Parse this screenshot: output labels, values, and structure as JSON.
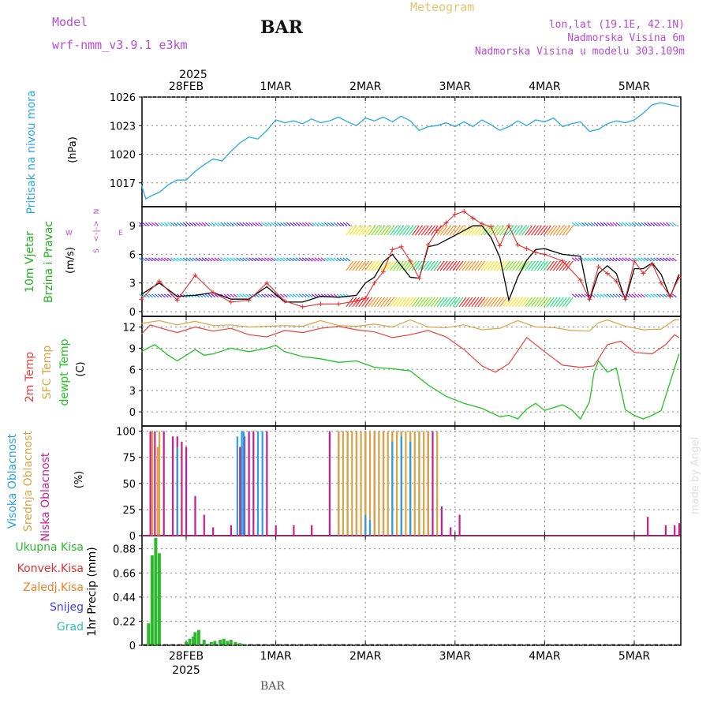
{
  "header": {
    "title": "BAR",
    "footer_station": "BAR",
    "meteogram_label": "Meteogram",
    "model_label": "Model",
    "model_name": "wrf-nmm_v3.9.1 e3km",
    "lonlat": "lon,lat (19.1E, 42.1N)",
    "elevation": "Nadmorska Visina 6m",
    "model_elevation": "Nadmorska Visina u modelu 303.109m",
    "watermark": "made by Angel",
    "year_top": "2025",
    "year_bottom": "2025",
    "compass_n": "N",
    "compass_w": "W",
    "compass_e": "E",
    "compass_s": "S",
    "compass_arrow": "<-|->"
  },
  "colors": {
    "pressure": "#29a8e0",
    "wind_black": "#000000",
    "wind_red": "#e0312f",
    "temp2m": "#e8413c",
    "tempsfc": "#d9a441",
    "dewpt": "#1fc41f",
    "cloud_high": "#2aa0e0",
    "cloud_mid": "#d9a441",
    "cloud_low": "#c81e8c",
    "precip_total": "#2db82d",
    "precip_conv": "#e0312f",
    "precip_frozen": "#f08020",
    "precip_snow": "#3c3cf0",
    "precip_graupel": "#30c0c0",
    "label_purple": "#b94bd6",
    "grid": "#888888"
  },
  "chart_data": [
    {
      "id": "pressure",
      "type": "line",
      "ylabel": "(hPa)",
      "side_labels": [
        "Pritisak na nivou mora"
      ],
      "x_ticks": [
        "28FEB",
        "1MAR",
        "2MAR",
        "3MAR",
        "4MAR",
        "5MAR"
      ],
      "x_range_days": [
        -0.5,
        5.5
      ],
      "ylim": [
        1014.5,
        1026
      ],
      "yticks": [
        1017,
        1020,
        1023,
        1026
      ],
      "series": [
        {
          "name": "Pritisak na nivou mora",
          "x": [
            -0.5,
            -0.45,
            -0.4,
            -0.3,
            -0.2,
            -0.1,
            0.0,
            0.1,
            0.2,
            0.3,
            0.4,
            0.5,
            0.6,
            0.7,
            0.8,
            0.9,
            1.0,
            1.1,
            1.2,
            1.3,
            1.4,
            1.5,
            1.6,
            1.7,
            1.8,
            1.9,
            2.0,
            2.1,
            2.2,
            2.3,
            2.4,
            2.5,
            2.6,
            2.7,
            2.8,
            2.9,
            3.0,
            3.1,
            3.2,
            3.3,
            3.4,
            3.5,
            3.6,
            3.7,
            3.8,
            3.9,
            4.0,
            4.1,
            4.2,
            4.3,
            4.4,
            4.5,
            4.6,
            4.7,
            4.8,
            4.9,
            5.0,
            5.1,
            5.2,
            5.3,
            5.4,
            5.5
          ],
          "values": [
            1016.8,
            1015.3,
            1015.6,
            1016.0,
            1016.8,
            1017.3,
            1017.3,
            1018.2,
            1018.9,
            1019.5,
            1019.3,
            1020.3,
            1021.2,
            1021.8,
            1021.6,
            1022.5,
            1023.6,
            1023.3,
            1023.5,
            1023.2,
            1023.7,
            1023.3,
            1023.5,
            1023.9,
            1023.4,
            1023.0,
            1023.8,
            1023.5,
            1023.9,
            1023.4,
            1024.0,
            1023.5,
            1022.5,
            1022.9,
            1023.0,
            1023.3,
            1022.9,
            1023.4,
            1022.9,
            1023.6,
            1023.1,
            1022.5,
            1022.9,
            1023.5,
            1023.0,
            1023.6,
            1023.4,
            1023.8,
            1022.9,
            1023.2,
            1023.4,
            1022.4,
            1022.6,
            1023.2,
            1023.5,
            1023.3,
            1023.6,
            1024.3,
            1025.2,
            1025.4,
            1025.2,
            1025.0
          ]
        }
      ]
    },
    {
      "id": "wind",
      "type": "line",
      "ylabel": "(m/s)",
      "side_labels": [
        "10m Vjetar",
        "Brzina i Pravac"
      ],
      "ylim": [
        -0.5,
        11
      ],
      "yticks": [
        0,
        3,
        6,
        9
      ],
      "series": [
        {
          "name": "10m wind speed",
          "x": [
            -0.5,
            -0.3,
            -0.1,
            0.1,
            0.3,
            0.5,
            0.7,
            0.9,
            1.1,
            1.3,
            1.5,
            1.7,
            1.9,
            2.0,
            2.1,
            2.2,
            2.3,
            2.4,
            2.5,
            2.6,
            2.7,
            2.8,
            2.9,
            3.0,
            3.1,
            3.2,
            3.3,
            3.4,
            3.5,
            3.6,
            3.7,
            3.8,
            3.9,
            4.0,
            4.2,
            4.4,
            4.5,
            4.6,
            4.7,
            4.8,
            4.9,
            5.0,
            5.1,
            5.2,
            5.3,
            5.4,
            5.5
          ],
          "values": [
            1.8,
            3.0,
            1.6,
            1.7,
            2.0,
            1.3,
            1.3,
            2.6,
            1.0,
            1.0,
            1.6,
            1.5,
            1.7,
            3.0,
            3.6,
            5.2,
            6.0,
            4.8,
            3.6,
            3.5,
            6.8,
            7.0,
            7.5,
            8.0,
            8.5,
            9.0,
            9.0,
            7.8,
            5.7,
            1.2,
            3.6,
            5.4,
            6.5,
            6.6,
            6.0,
            5.8,
            1.2,
            4.0,
            4.8,
            4.0,
            1.2,
            4.5,
            4.5,
            5.1,
            3.9,
            1.5,
            3.9
          ]
        },
        {
          "name": "10m wind gust",
          "x": [
            -0.5,
            -0.3,
            -0.1,
            0.1,
            0.3,
            0.5,
            0.7,
            0.9,
            1.1,
            1.3,
            1.5,
            1.7,
            1.9,
            2.0,
            2.1,
            2.2,
            2.3,
            2.4,
            2.5,
            2.6,
            2.7,
            2.8,
            2.9,
            3.0,
            3.1,
            3.2,
            3.3,
            3.4,
            3.5,
            3.6,
            3.7,
            3.8,
            3.9,
            4.0,
            4.2,
            4.4,
            4.5,
            4.6,
            4.7,
            4.8,
            4.9,
            5.0,
            5.1,
            5.2,
            5.3,
            5.4,
            5.5
          ],
          "values": [
            1.3,
            3.2,
            1.2,
            3.8,
            2.0,
            1.0,
            1.2,
            3.0,
            1.1,
            0.5,
            0.8,
            0.8,
            1.1,
            1.4,
            3.0,
            4.2,
            6.5,
            6.8,
            5.3,
            3.5,
            7.0,
            8.5,
            9.3,
            10.2,
            10.5,
            9.8,
            9.2,
            8.9,
            6.9,
            9.0,
            7.0,
            6.6,
            6.2,
            6.0,
            5.3,
            3.3,
            1.3,
            4.7,
            4.0,
            3.2,
            1.3,
            5.3,
            4.0,
            5.0,
            3.0,
            1.6,
            3.6
          ]
        }
      ],
      "wind_direction_rows": [
        1.5,
        5.3,
        9.0
      ]
    },
    {
      "id": "temperature",
      "type": "line",
      "ylabel": "(C)",
      "side_labels": [
        "2m Temp",
        "SFC Temp",
        "dewpt Temp"
      ],
      "ylim": [
        -2,
        13.5
      ],
      "yticks": [
        0,
        3,
        6,
        9,
        12
      ],
      "series": [
        {
          "name": "2m Temp",
          "x": [
            -0.5,
            -0.4,
            -0.3,
            -0.1,
            0.1,
            0.3,
            0.5,
            0.7,
            0.9,
            1.1,
            1.3,
            1.5,
            1.7,
            1.9,
            2.1,
            2.3,
            2.5,
            2.7,
            2.9,
            3.1,
            3.3,
            3.45,
            3.6,
            3.8,
            4.0,
            4.2,
            4.4,
            4.55,
            4.7,
            4.85,
            5.0,
            5.2,
            5.35,
            5.45,
            5.5
          ],
          "values": [
            11.0,
            12.3,
            11.9,
            11.2,
            12.0,
            11.4,
            11.8,
            10.9,
            10.6,
            11.5,
            11.2,
            11.8,
            12.1,
            11.6,
            11.3,
            10.5,
            10.9,
            11.5,
            10.6,
            8.8,
            6.5,
            5.6,
            6.8,
            10.5,
            8.5,
            6.6,
            6.3,
            6.5,
            9.5,
            10.0,
            8.4,
            8.2,
            9.5,
            10.9,
            10.5
          ]
        },
        {
          "name": "SFC Temp",
          "x": [
            -0.5,
            -0.3,
            -0.1,
            0.1,
            0.3,
            0.5,
            0.7,
            0.9,
            1.1,
            1.3,
            1.5,
            1.7,
            1.9,
            2.1,
            2.3,
            2.5,
            2.7,
            2.9,
            3.1,
            3.3,
            3.5,
            3.7,
            3.9,
            4.1,
            4.3,
            4.5,
            4.6,
            4.7,
            4.9,
            5.1,
            5.3,
            5.45,
            5.5
          ],
          "values": [
            12.5,
            12.9,
            12.3,
            12.8,
            12.2,
            12.3,
            12.0,
            12.1,
            12.2,
            12.1,
            12.9,
            12.2,
            12.1,
            12.4,
            12.0,
            13.0,
            12.0,
            11.9,
            12.3,
            11.6,
            11.8,
            12.9,
            12.0,
            11.9,
            11.5,
            11.4,
            12.6,
            13.0,
            12.1,
            11.6,
            11.7,
            13.0,
            13.0
          ]
        },
        {
          "name": "dewpt Temp",
          "x": [
            -0.5,
            -0.4,
            -0.35,
            -0.2,
            -0.1,
            0.0,
            0.1,
            0.2,
            0.3,
            0.5,
            0.7,
            0.9,
            1.0,
            1.1,
            1.3,
            1.5,
            1.7,
            1.9,
            2.1,
            2.3,
            2.5,
            2.7,
            2.9,
            3.1,
            3.3,
            3.5,
            3.6,
            3.7,
            3.8,
            3.9,
            4.0,
            4.2,
            4.3,
            4.4,
            4.5,
            4.55,
            4.6,
            4.7,
            4.8,
            4.9,
            5.0,
            5.1,
            5.2,
            5.3,
            5.4,
            5.5
          ],
          "values": [
            8.5,
            9.2,
            9.5,
            8.0,
            7.2,
            8.0,
            8.8,
            8.0,
            8.2,
            9.0,
            8.5,
            9.0,
            9.4,
            8.5,
            7.8,
            7.5,
            7.0,
            7.2,
            6.3,
            6.1,
            5.8,
            3.8,
            2.2,
            1.2,
            0.5,
            -0.7,
            -0.5,
            -1.0,
            0.4,
            1.2,
            0.2,
            1.0,
            0.3,
            -1.0,
            1.4,
            5.5,
            7.2,
            5.6,
            6.2,
            0.3,
            -0.5,
            -1.0,
            -0.5,
            0.2,
            4.2,
            8.2
          ]
        }
      ]
    },
    {
      "id": "cloud",
      "type": "bar",
      "ylabel": "(%)",
      "side_labels": [
        "Visoka Oblacnost",
        "Srednja Oblacnost",
        "Niska Oblacnost"
      ],
      "ylim": [
        0,
        105
      ],
      "yticks": [
        0,
        25,
        50,
        75,
        100
      ],
      "series": [
        {
          "name": "Niska Oblacnost",
          "x": [
            -0.4,
            -0.35,
            -0.25,
            -0.15,
            -0.1,
            -0.05,
            0.0,
            0.1,
            0.2,
            0.3,
            0.5,
            0.6,
            0.65,
            0.7,
            0.75,
            0.8,
            0.9,
            1.0,
            1.2,
            1.4,
            1.6,
            1.7,
            1.8,
            1.9,
            2.0,
            2.1,
            2.2,
            2.3,
            2.4,
            2.5,
            2.6,
            2.7,
            2.75,
            2.85,
            2.95,
            3.05,
            5.15,
            5.35,
            5.45,
            5.5
          ],
          "values": [
            100,
            100,
            100,
            95,
            95,
            90,
            85,
            38,
            20,
            8,
            10,
            85,
            95,
            100,
            100,
            12,
            100,
            10,
            10,
            10,
            100,
            100,
            100,
            100,
            100,
            100,
            100,
            100,
            100,
            100,
            100,
            100,
            100,
            28,
            8,
            20,
            18,
            10,
            10,
            12
          ]
        },
        {
          "name": "Srednja Oblacnost",
          "x": [
            -0.38,
            -0.32,
            -0.3,
            1.7,
            1.75,
            1.8,
            1.85,
            1.9,
            1.95,
            2.0,
            2.05,
            2.1,
            2.15,
            2.2,
            2.25,
            2.3,
            2.35,
            2.4,
            2.45,
            2.5,
            2.55,
            2.6,
            2.65,
            2.7,
            2.8
          ],
          "values": [
            100,
            85,
            100,
            100,
            100,
            100,
            100,
            100,
            100,
            100,
            100,
            100,
            100,
            100,
            100,
            100,
            100,
            100,
            100,
            100,
            100,
            100,
            100,
            100,
            100
          ]
        },
        {
          "name": "Visoka Oblacnost",
          "x": [
            -0.1,
            0.57,
            0.62,
            0.64,
            0.8,
            0.85,
            2.0,
            2.05,
            2.3,
            2.4,
            2.5
          ],
          "values": [
            85,
            95,
            100,
            100,
            100,
            100,
            20,
            15,
            90,
            95,
            90
          ]
        }
      ]
    },
    {
      "id": "precip",
      "type": "bar",
      "ylabel": "1hr Precip (mm)",
      "side_labels": [
        "Ukupna Kisa",
        "Konvek.Kisa",
        "Zaledj.Kisa",
        "Snijeg",
        "Grad"
      ],
      "ylim": [
        0,
        1.0
      ],
      "yticks": [
        0,
        0.22,
        0.44,
        0.66,
        0.88
      ],
      "ytick_labels": [
        "0",
        "0.22",
        "0.44",
        "0.66",
        "0.88"
      ],
      "series": [
        {
          "name": "Ukupna Kisa",
          "x": [
            -0.42,
            -0.38,
            -0.34,
            -0.3,
            0.0,
            0.04,
            0.08,
            0.1,
            0.14,
            0.2,
            0.28,
            0.32,
            0.38,
            0.42,
            0.46,
            0.5,
            0.55,
            0.6,
            0.66
          ],
          "values": [
            0.2,
            0.82,
            0.98,
            0.84,
            0.03,
            0.06,
            0.08,
            0.12,
            0.14,
            0.05,
            0.03,
            0.04,
            0.05,
            0.06,
            0.04,
            0.05,
            0.03,
            0.02,
            0.01
          ]
        }
      ]
    }
  ]
}
